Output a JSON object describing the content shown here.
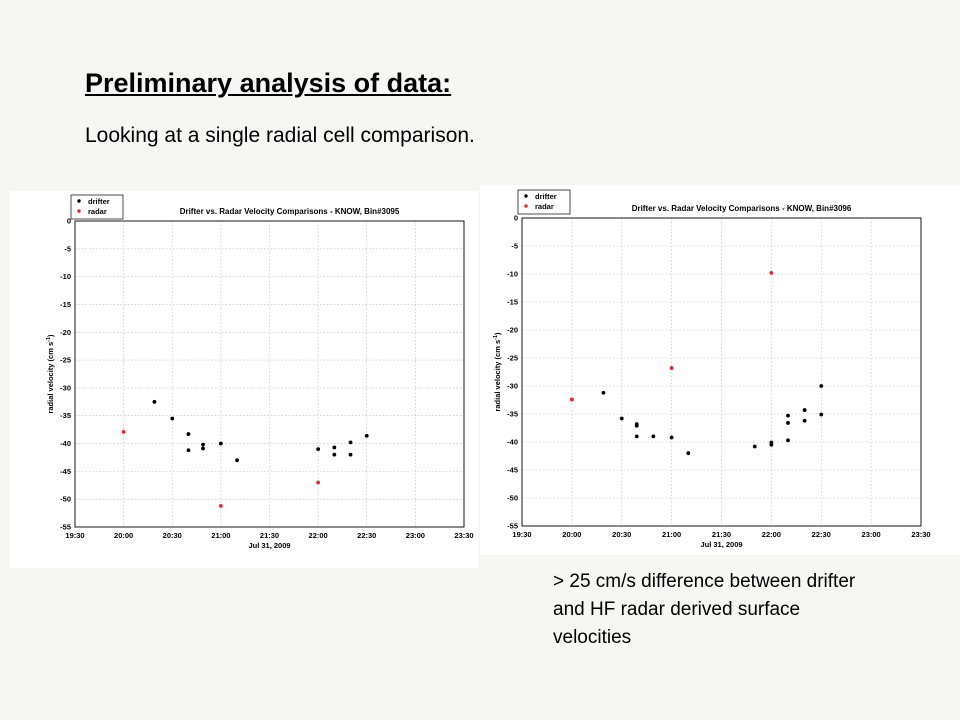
{
  "slide": {
    "title": "Preliminary analysis of data:",
    "subtitle": "Looking at a single radial cell comparison.",
    "note": "> 25 cm/s difference between drifter and HF radar derived surface velocities"
  },
  "colors": {
    "drifter": "#000000",
    "radar": "#e8261e",
    "background": "#f6f6f2"
  },
  "chart_data": [
    {
      "type": "scatter",
      "title": "Drifter vs. Radar Velocity Comparisons - KNOW, Bin#3095",
      "xlabel": "Jul 31, 2009",
      "ylabel": "radial velocity (cm s",
      "ylabel_sup": "-1",
      "ylabel_close": ")",
      "xlim": [
        "19:30",
        "23:30"
      ],
      "ylim": [
        -55,
        0
      ],
      "x_ticks": [
        "19:30",
        "20:00",
        "20:30",
        "21:00",
        "21:30",
        "22:00",
        "22:30",
        "23:00",
        "23:30"
      ],
      "y_ticks": [
        0,
        -5,
        -10,
        -15,
        -20,
        -25,
        -30,
        -35,
        -40,
        -45,
        -50,
        -55
      ],
      "grid": true,
      "legend": "top-left",
      "series": [
        {
          "name": "drifter",
          "color": "#000000",
          "x": [
            "20:19",
            "20:30",
            "20:40",
            "20:40",
            "20:49",
            "20:49",
            "21:00",
            "21:10",
            "22:00",
            "22:10",
            "22:10",
            "22:20",
            "22:20",
            "22:30"
          ],
          "y": [
            -32.5,
            -35.5,
            -38.3,
            -41.2,
            -40.2,
            -40.9,
            -40,
            -43,
            -41,
            -40.7,
            -42,
            -39.8,
            -42,
            -38.6
          ]
        },
        {
          "name": "radar",
          "color": "#e8261e",
          "x": [
            "20:00",
            "21:00",
            "22:00"
          ],
          "y": [
            -37.9,
            -51.2,
            -47
          ]
        }
      ]
    },
    {
      "type": "scatter",
      "title": "Drifter vs. Radar Velocity Comparisons - KNOW, Bin#3096",
      "xlabel": "Jul 31, 2009",
      "ylabel": "radial velocity (cm s",
      "ylabel_sup": "-1",
      "ylabel_close": ")",
      "xlim": [
        "19:30",
        "23:30"
      ],
      "ylim": [
        -55,
        0
      ],
      "x_ticks": [
        "19:30",
        "20:00",
        "20:30",
        "21:00",
        "21:30",
        "22:00",
        "22:30",
        "23:00",
        "23:30"
      ],
      "y_ticks": [
        0,
        -5,
        -10,
        -15,
        -20,
        -25,
        -30,
        -35,
        -40,
        -45,
        -50,
        -55
      ],
      "grid": true,
      "legend": "top-left",
      "series": [
        {
          "name": "drifter",
          "color": "#000000",
          "x": [
            "20:19",
            "20:30",
            "20:39",
            "20:39",
            "20:39",
            "20:49",
            "21:00",
            "21:10",
            "21:50",
            "22:00",
            "22:00",
            "22:10",
            "22:10",
            "22:10",
            "22:20",
            "22:20",
            "22:30",
            "22:30"
          ],
          "y": [
            -31.2,
            -35.8,
            -36.8,
            -37.1,
            -39,
            -39,
            -39.2,
            -42,
            -40.8,
            -40.1,
            -40.5,
            -35.3,
            -36.6,
            -39.7,
            -34.3,
            -36.2,
            -30,
            -35.1
          ]
        },
        {
          "name": "radar",
          "color": "#e8261e",
          "x": [
            "20:00",
            "21:00",
            "22:00"
          ],
          "y": [
            -32.4,
            -26.8,
            -9.8
          ]
        }
      ]
    }
  ]
}
